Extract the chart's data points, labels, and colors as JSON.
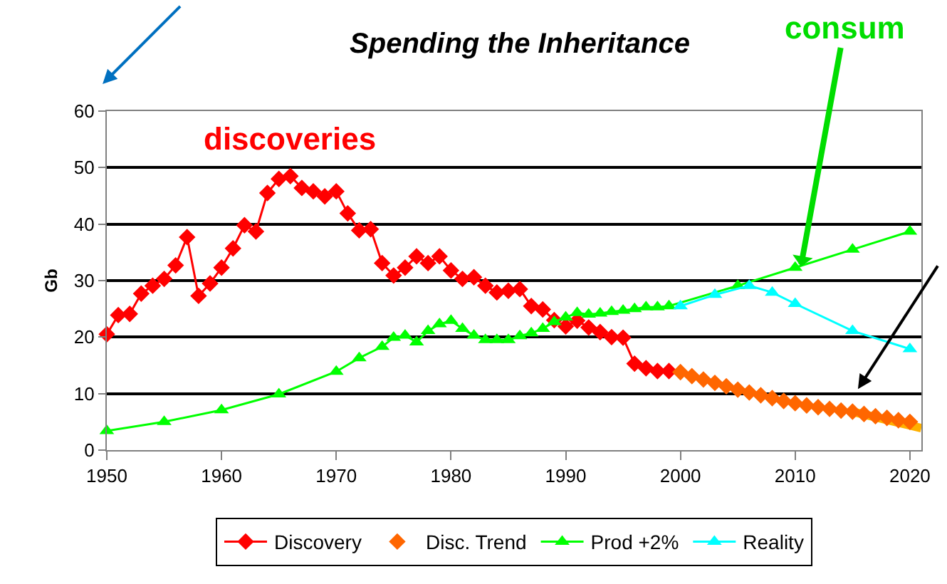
{
  "chart_data": {
    "type": "line",
    "title": "Spending the Inheritance",
    "ylabel": "Gb",
    "xlim": [
      1950,
      2021
    ],
    "xticks": [
      1950,
      1960,
      1970,
      1980,
      1990,
      2000,
      2010,
      2020
    ],
    "ylim": [
      0,
      60
    ],
    "yticks": [
      0,
      10,
      20,
      30,
      40,
      50,
      60
    ],
    "grid": "y",
    "legend": "bottom",
    "annotations": [
      "discoveries",
      {
        "text": "consum",
        "x": 2010.5,
        "y": 32.5
      }
    ],
    "series": [
      {
        "name": "Discovery",
        "color": "#ff0000",
        "marker": "diamond",
        "x": [
          1950,
          1951,
          1952,
          1953,
          1954,
          1955,
          1956,
          1957,
          1958,
          1959,
          1960,
          1961,
          1962,
          1963,
          1964,
          1965,
          1966,
          1967,
          1968,
          1969,
          1970,
          1971,
          1972,
          1973,
          1974,
          1975,
          1976,
          1977,
          1978,
          1979,
          1980,
          1981,
          1982,
          1983,
          1984,
          1985,
          1986,
          1987,
          1988,
          1989,
          1990,
          1991,
          1992,
          1993,
          1994,
          1995,
          1996,
          1997,
          1998,
          1999
        ],
        "values": [
          20.5,
          23.9,
          24.1,
          27.7,
          29.1,
          30.3,
          32.7,
          37.7,
          27.3,
          29.5,
          32.3,
          35.7,
          39.8,
          38.7,
          45.5,
          48.0,
          48.5,
          46.4,
          45.8,
          44.9,
          45.8,
          41.9,
          38.9,
          39.1,
          33.1,
          30.9,
          32.3,
          34.3,
          33.1,
          34.3,
          31.8,
          30.3,
          30.6,
          29.1,
          27.9,
          28.2,
          28.5,
          25.5,
          24.9,
          23.0,
          21.9,
          22.9,
          21.7,
          20.9,
          20.0,
          19.9,
          15.3,
          14.5,
          14.0,
          14.0
        ]
      },
      {
        "name": "Disc. Trend",
        "type": "scatter",
        "color": "#ff6600",
        "marker": "diamond",
        "x": [
          2000,
          2001,
          2002,
          2003,
          2004,
          2005,
          2006,
          2007,
          2008,
          2009,
          2010,
          2011,
          2012,
          2013,
          2014,
          2015,
          2016,
          2017,
          2018,
          2019,
          2020
        ],
        "values": [
          13.8,
          13.1,
          12.5,
          11.9,
          11.3,
          10.7,
          10.2,
          9.7,
          9.2,
          8.7,
          8.3,
          7.9,
          7.6,
          7.3,
          7.0,
          6.8,
          6.4,
          6.0,
          5.7,
          5.3,
          5.0
        ]
      },
      {
        "name": "Prod +2%",
        "color": "#00ff00",
        "marker": "triangle",
        "x": [
          1950,
          1955,
          1960,
          1965,
          1970,
          1972,
          1974,
          1975,
          1976,
          1977,
          1978,
          1979,
          1980,
          1981,
          1982,
          1983,
          1984,
          1985,
          1986,
          1987,
          1988,
          1989,
          1990,
          1991,
          1992,
          1993,
          1994,
          1995,
          1996,
          1997,
          1998,
          1999,
          2000,
          2005,
          2010,
          2015,
          2020
        ],
        "values": [
          3.4,
          5.0,
          7.1,
          9.9,
          13.9,
          16.3,
          18.3,
          19.9,
          20.3,
          19.1,
          21.1,
          22.3,
          22.9,
          21.5,
          20.3,
          19.5,
          19.5,
          19.5,
          20.2,
          20.7,
          21.5,
          22.7,
          23.5,
          24.3,
          24.0,
          24.2,
          24.5,
          24.7,
          25.0,
          25.3,
          25.3,
          25.5,
          null,
          29.1,
          32.3,
          35.5,
          38.7
        ]
      },
      {
        "name": "Reality",
        "color": "#00ffff",
        "marker": "triangle",
        "x": [
          2000,
          2003,
          2006,
          2008,
          2010,
          2015,
          2020
        ],
        "values": [
          25.5,
          27.5,
          29.1,
          27.9,
          25.9,
          21.1,
          17.9
        ]
      },
      {
        "color": "#ffb000",
        "x": [
          2015,
          2021
        ],
        "values": [
          6.8,
          3.9
        ]
      }
    ]
  }
}
